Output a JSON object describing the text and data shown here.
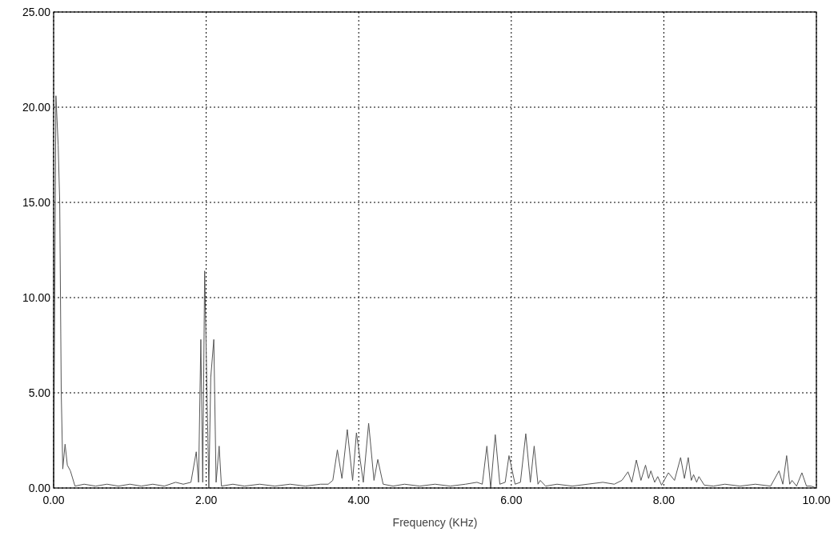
{
  "chart_data": {
    "type": "line",
    "xlabel": "Frequency (KHz)",
    "xlim": [
      0,
      10
    ],
    "xticks": [
      {
        "value": 0,
        "label": "0.00"
      },
      {
        "value": 2,
        "label": "2.00"
      },
      {
        "value": 4,
        "label": "4.00"
      },
      {
        "value": 6,
        "label": "6.00"
      },
      {
        "value": 8,
        "label": "8.00"
      },
      {
        "value": 10,
        "label": "10.00"
      }
    ],
    "ylim": [
      0,
      25
    ],
    "yticks": [
      {
        "value": 0,
        "label": "0.00"
      },
      {
        "value": 5,
        "label": "5.00"
      },
      {
        "value": 10,
        "label": "10.00"
      },
      {
        "value": 15,
        "label": "15.00"
      },
      {
        "value": 20,
        "label": "20.00"
      },
      {
        "value": 25,
        "label": "25.00"
      }
    ],
    "grid": true,
    "marker": "none",
    "line_style": "solid",
    "series": [
      {
        "color": "#555555",
        "x": [
          0,
          0.03,
          0.06,
          0.08,
          0.1,
          0.12,
          0.15,
          0.18,
          0.22,
          0.28,
          0.4,
          0.55,
          0.7,
          0.85,
          1.0,
          1.15,
          1.3,
          1.45,
          1.6,
          1.7,
          1.8,
          1.87,
          1.9,
          1.93,
          1.955,
          1.98,
          2.035,
          2.06,
          2.1,
          2.13,
          2.17,
          2.2,
          2.35,
          2.5,
          2.7,
          2.9,
          3.1,
          3.3,
          3.5,
          3.6,
          3.66,
          3.72,
          3.78,
          3.85,
          3.92,
          3.97,
          4.06,
          4.13,
          4.2,
          4.25,
          4.32,
          4.45,
          4.6,
          4.8,
          5.0,
          5.2,
          5.4,
          5.55,
          5.62,
          5.68,
          5.73,
          5.79,
          5.85,
          5.92,
          5.97,
          6.05,
          6.12,
          6.19,
          6.25,
          6.3,
          6.35,
          6.38,
          6.45,
          6.6,
          6.8,
          7.0,
          7.2,
          7.35,
          7.45,
          7.53,
          7.58,
          7.64,
          7.7,
          7.76,
          7.8,
          7.83,
          7.88,
          7.92,
          7.97,
          8.06,
          8.14,
          8.22,
          8.27,
          8.32,
          8.36,
          8.39,
          8.43,
          8.46,
          8.53,
          8.65,
          8.8,
          9.0,
          9.2,
          9.4,
          9.51,
          9.56,
          9.61,
          9.65,
          9.68,
          9.74,
          9.81,
          9.87,
          9.93,
          10
        ],
        "values": [
          0,
          20.6,
          18,
          15,
          5,
          1,
          2.3,
          1.2,
          0.9,
          0.1,
          0.2,
          0.1,
          0.2,
          0.1,
          0.2,
          0.1,
          0.2,
          0.1,
          0.3,
          0.2,
          0.3,
          1.9,
          0.3,
          7.8,
          0.3,
          11.4,
          0,
          5.8,
          7.8,
          0.3,
          2.2,
          0.1,
          0.2,
          0.1,
          0.2,
          0.1,
          0.2,
          0.1,
          0.2,
          0.2,
          0.4,
          2,
          0.5,
          3.07,
          0.4,
          2.9,
          0.3,
          3.4,
          0.4,
          1.5,
          0.2,
          0.1,
          0.2,
          0.1,
          0.2,
          0.1,
          0.2,
          0.3,
          0.2,
          2.2,
          0,
          2.8,
          0.2,
          0.3,
          1.7,
          0.2,
          0.3,
          2.85,
          0.3,
          2.2,
          0.2,
          0.4,
          0.1,
          0.2,
          0.1,
          0.2,
          0.3,
          0.2,
          0.4,
          0.85,
          0.3,
          1.47,
          0.4,
          1.2,
          0.5,
          0.9,
          0.3,
          0.6,
          0.15,
          0.8,
          0.4,
          1.6,
          0.5,
          1.6,
          0.4,
          0.7,
          0.3,
          0.6,
          0.15,
          0.1,
          0.2,
          0.1,
          0.2,
          0.1,
          0.9,
          0.2,
          1.7,
          0.2,
          0.4,
          0.1,
          0.8,
          0.1,
          0.1,
          0
        ]
      }
    ]
  }
}
